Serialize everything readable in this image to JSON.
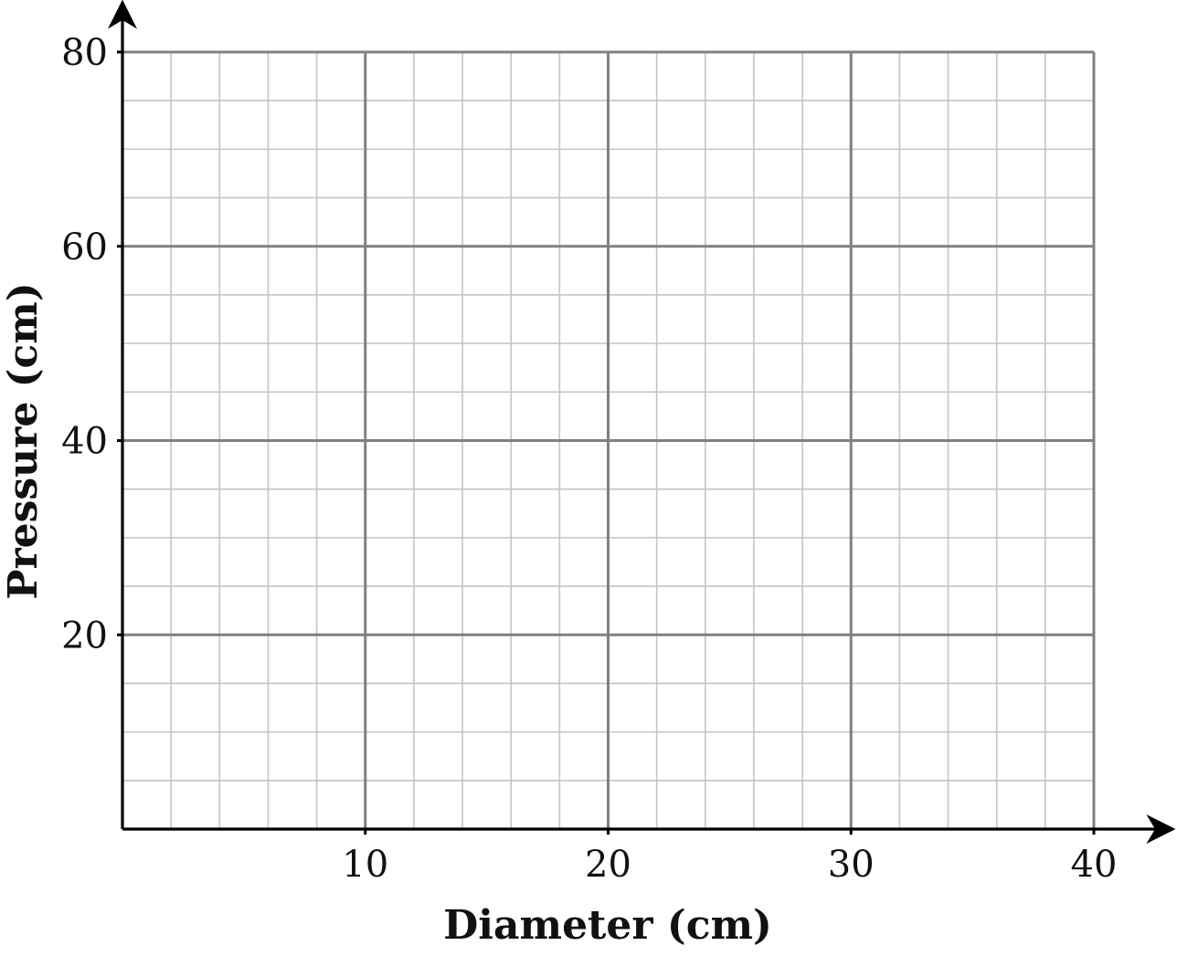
{
  "chart_data": {
    "type": "line",
    "xlabel": "Diameter (cm)",
    "ylabel": "Pressure (cm)",
    "xlim": [
      0,
      40
    ],
    "ylim": [
      0,
      80
    ],
    "x_ticks": [
      {
        "value": 10,
        "label": "10"
      },
      {
        "value": 20,
        "label": "20"
      },
      {
        "value": 30,
        "label": "30"
      },
      {
        "value": 40,
        "label": "40"
      }
    ],
    "y_ticks": [
      {
        "value": 20,
        "label": "20"
      },
      {
        "value": 40,
        "label": "40"
      },
      {
        "value": 60,
        "label": "60"
      },
      {
        "value": 80,
        "label": "80"
      }
    ],
    "major_grid_x_step": 10,
    "major_grid_y_step": 20,
    "minor_grid_x_step": 2,
    "minor_grid_y_step": 5,
    "grid": true,
    "series": []
  },
  "colors": {
    "major_grid": "#808080",
    "minor_grid": "#c4c4c4",
    "axis": "#000000",
    "text": "#111111",
    "background": "#ffffff"
  }
}
